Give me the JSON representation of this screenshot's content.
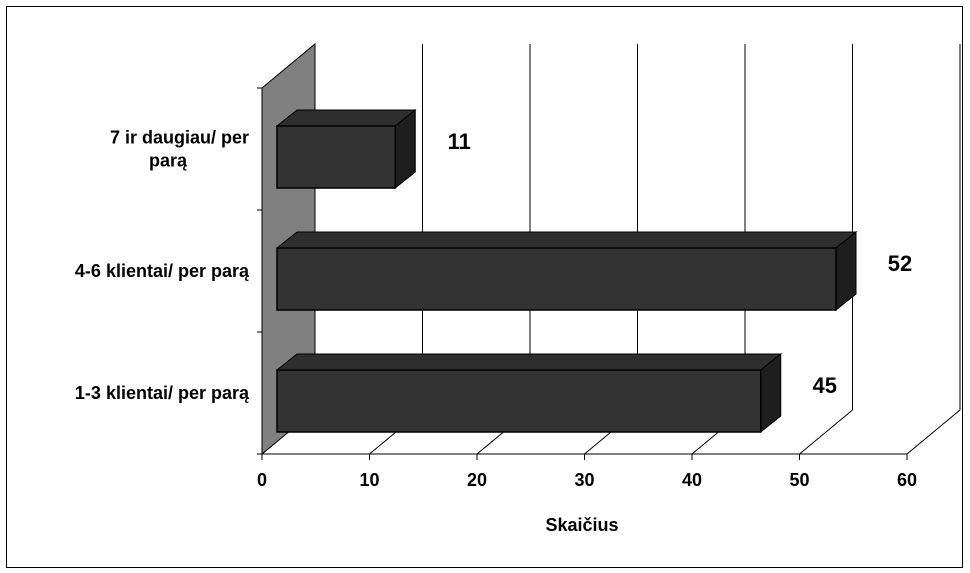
{
  "chart_data": {
    "type": "bar",
    "orientation": "horizontal",
    "style": "3d",
    "categories": [
      "1-3 klientai/ per parą",
      "4-6 klientai/ per parą",
      "7 ir daugiau/ per parą"
    ],
    "category_lines": [
      [
        "1-3 klientai/ per parą"
      ],
      [
        "4-6 klientai/ per parą"
      ],
      [
        "7 ir daugiau/ per",
        "parą"
      ]
    ],
    "values": [
      45,
      52,
      11
    ],
    "data_labels": [
      "45",
      "52",
      "11"
    ],
    "xlabel": "Skaičius",
    "ylabel": "",
    "title": "",
    "xlim": [
      0,
      60
    ],
    "xticks": [
      "0",
      "10",
      "20",
      "30",
      "40",
      "50",
      "60"
    ],
    "grid": true,
    "legend": "none",
    "bar_color": "#333333",
    "wall_color": "#808080"
  }
}
